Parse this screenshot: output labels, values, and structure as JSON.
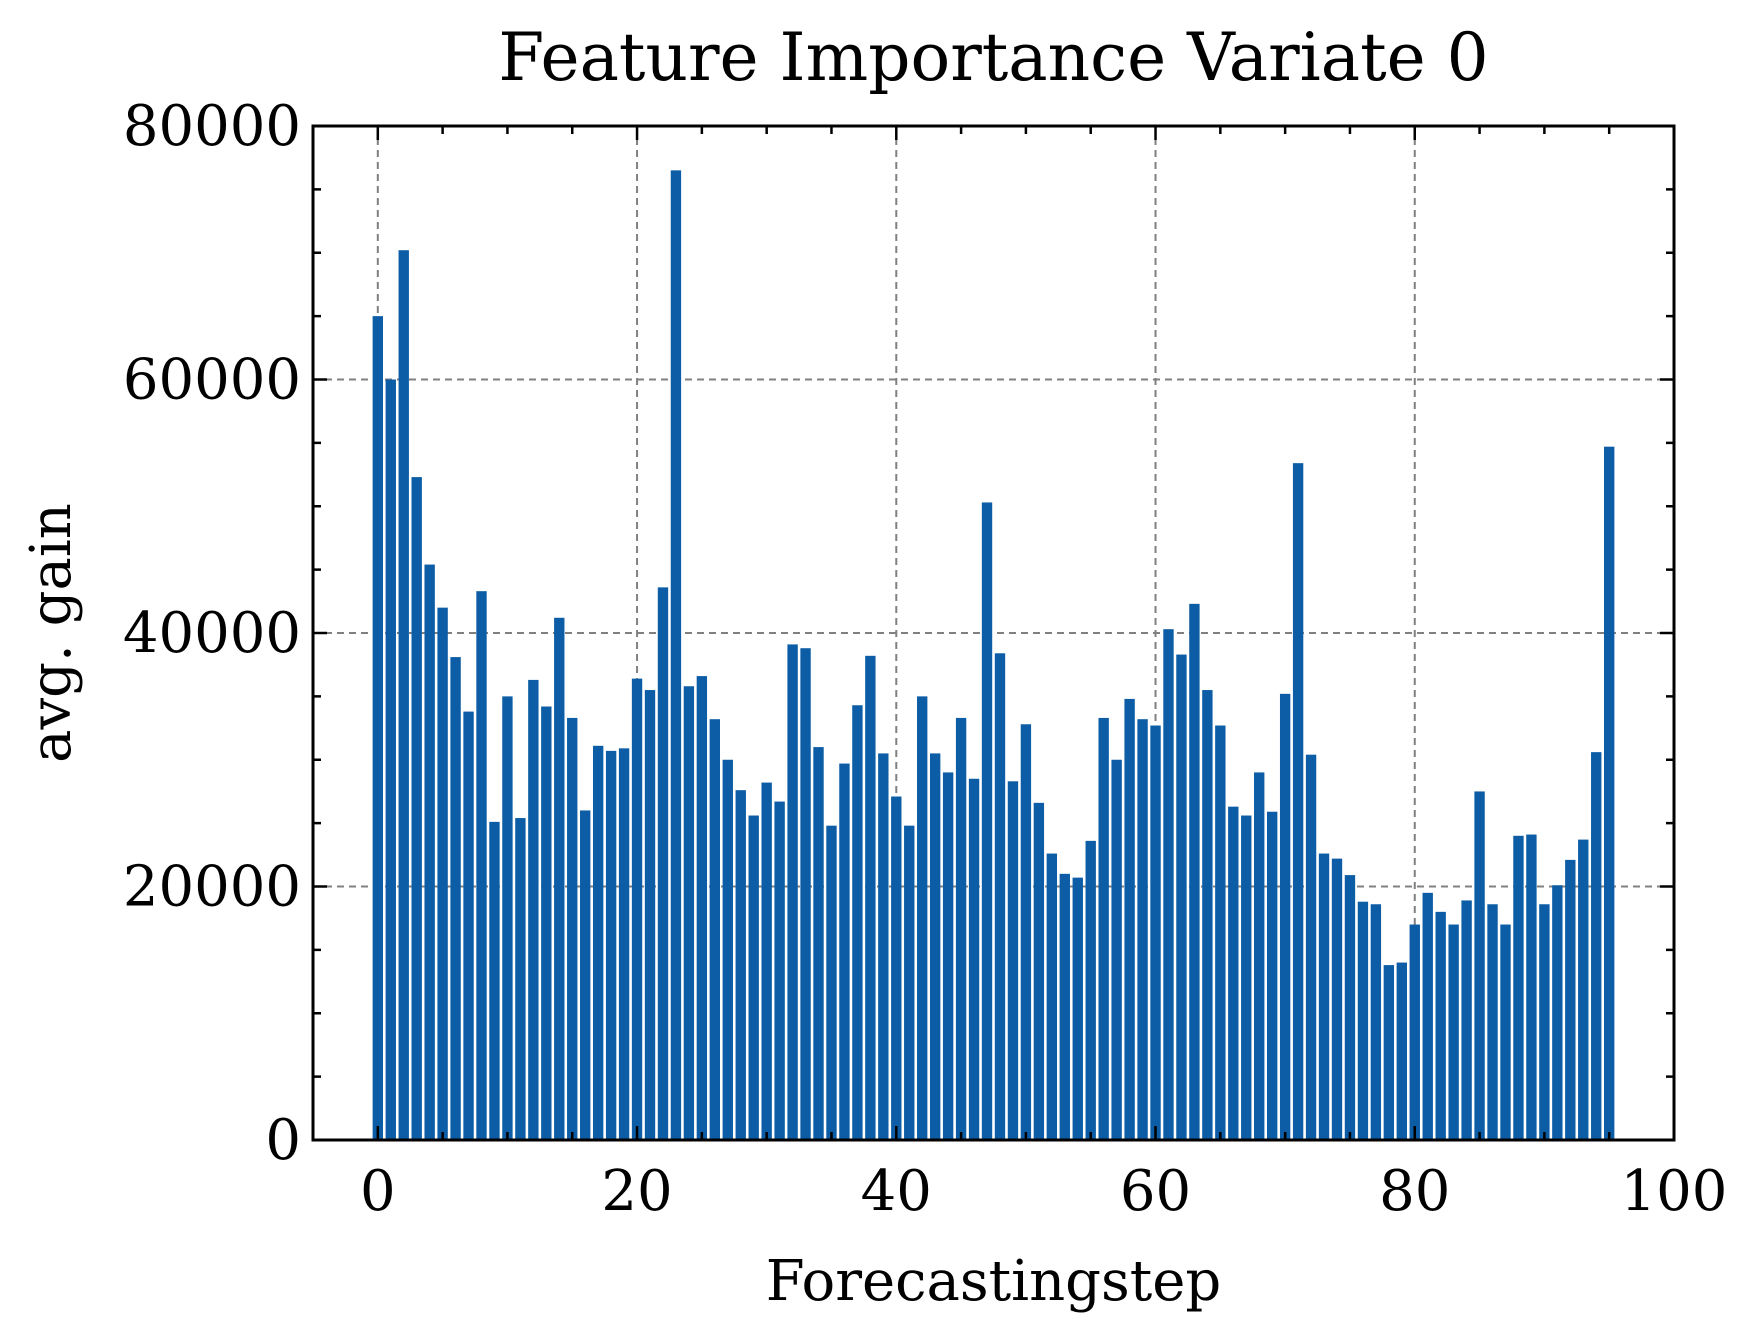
{
  "chart_data": {
    "type": "bar",
    "title": "Feature Importance Variate 0",
    "xlabel": "Forecastingstep",
    "ylabel": "avg. gain",
    "xlim": [
      -5,
      100
    ],
    "ylim": [
      0,
      80000
    ],
    "x_ticks": [
      0,
      20,
      40,
      60,
      80,
      100
    ],
    "y_ticks": [
      0,
      20000,
      40000,
      60000,
      80000
    ],
    "x_tick_labels": [
      "0",
      "20",
      "40",
      "60",
      "80",
      "100"
    ],
    "y_tick_labels": [
      "0",
      "20000",
      "40000",
      "60000",
      "80000"
    ],
    "grid": true,
    "bar_color": "#0C5DA5",
    "series": [
      {
        "values": [
          65000,
          60000,
          70200,
          52300,
          45400,
          42000,
          38100,
          33800,
          43300,
          25100,
          35000,
          25400,
          36300,
          34200,
          41200,
          33300,
          26000,
          31100,
          30700,
          30900,
          36400,
          35500,
          43600,
          76500,
          35800,
          36600,
          33200,
          30000,
          27600,
          25600,
          28200,
          26700,
          39100,
          38800,
          31000,
          24800,
          29700,
          34300,
          38200,
          30500,
          27100,
          24800,
          35000,
          30500,
          29000,
          33300,
          28500,
          50300,
          38400,
          28300,
          32800,
          26600,
          22600,
          21000,
          20700,
          23600,
          33300,
          30000,
          34800,
          33200,
          32700,
          40300,
          38300,
          42300,
          35500,
          32700,
          26300,
          25600,
          29000,
          25900,
          35200,
          53400,
          30400,
          22600,
          22200,
          20900,
          18800,
          18600,
          13800,
          14000,
          17000,
          19500,
          18000,
          17000,
          18900,
          27500,
          18600,
          17000,
          24000,
          24100,
          18600,
          20100,
          22100,
          23700,
          30600,
          54700
        ]
      }
    ]
  }
}
